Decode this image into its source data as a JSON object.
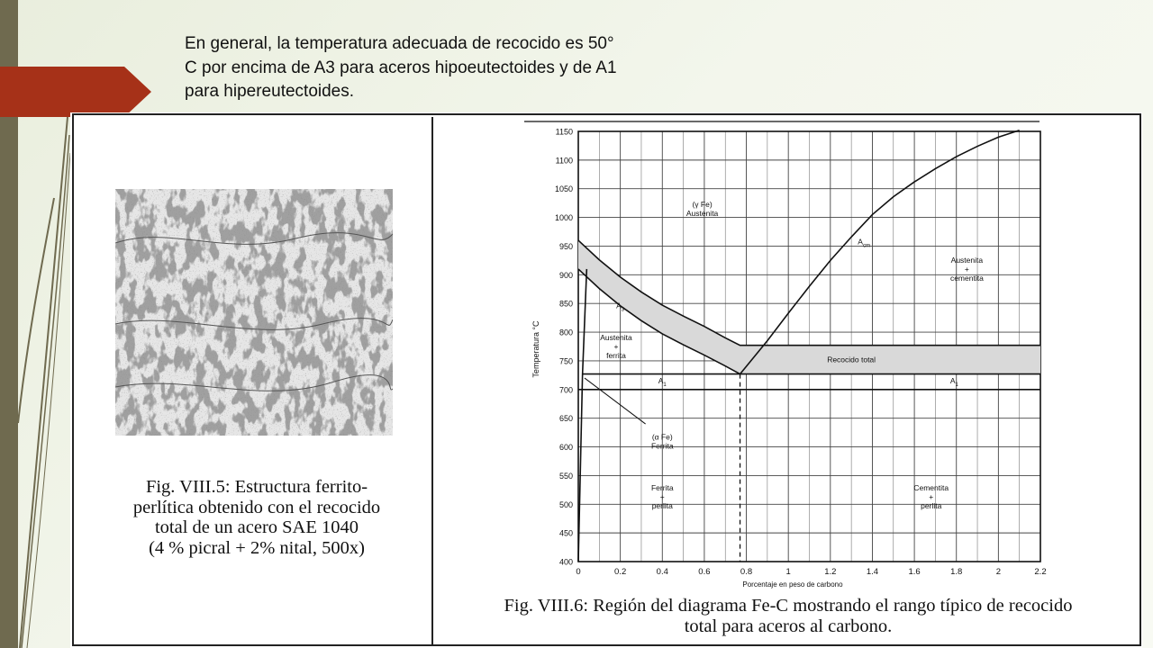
{
  "slide": {
    "text_lines": [
      "En general, la temperatura adecuada de recocido es 50°",
      "C por encima de A3 para aceros hipoeutectoides y de A1",
      "para hipereutectoides."
    ]
  },
  "figure_left": {
    "caption_lines": [
      "Fig. VIII.5: Estructura ferrito-",
      "perlítica obtenido con el recocido",
      "total de un acero SAE 1040",
      "(4 % picral + 2% nital, 500x)"
    ]
  },
  "figure_right": {
    "caption_lines": [
      "Fig. VIII.6: Región del diagrama Fe-C mostrando el rango típico de recocido",
      "total para aceros al carbono."
    ]
  },
  "chart_data": {
    "type": "line",
    "xlabel": "Porcentaje en peso de carbono",
    "ylabel": "Temperatura °C",
    "xlim": [
      0,
      2.2
    ],
    "ylim": [
      400,
      1150
    ],
    "x_ticks": [
      "0",
      "0.2",
      "0.4",
      "0.6",
      "0.8",
      "1",
      "1.2",
      "1.4",
      "1.6",
      "1.8",
      "2",
      "2.2"
    ],
    "y_ticks": [
      "400",
      "450",
      "500",
      "550",
      "600",
      "650",
      "700",
      "750",
      "800",
      "850",
      "900",
      "950",
      "1000",
      "1050",
      "1100",
      "1150"
    ],
    "grid": true,
    "series": [
      {
        "name": "A3",
        "x": [
          0,
          0.1,
          0.2,
          0.3,
          0.4,
          0.5,
          0.6,
          0.7,
          0.77
        ],
        "y": [
          910,
          876,
          846,
          820,
          797,
          778,
          760,
          741,
          727
        ]
      },
      {
        "name": "Acm",
        "x": [
          0.77,
          0.9,
          1.0,
          1.1,
          1.2,
          1.3,
          1.4,
          1.5,
          1.6,
          1.7,
          1.8,
          1.9,
          2.0,
          2.1
        ],
        "y": [
          727,
          785,
          833,
          880,
          925,
          966,
          1005,
          1036,
          1062,
          1085,
          1106,
          1124,
          1140,
          1152
        ]
      },
      {
        "name": "A1",
        "x": [
          0.02,
          2.2
        ],
        "y": [
          727,
          727
        ]
      },
      {
        "name": "",
        "x": [
          0,
          0.1,
          0.2,
          0.3,
          0.4,
          0.5,
          0.6,
          0.7,
          0.77,
          2.2
        ],
        "y": [
          960,
          926,
          896,
          870,
          847,
          828,
          810,
          790,
          777,
          777
        ]
      },
      {
        "name": "",
        "x": [
          0,
          2.2
        ],
        "y": [
          700,
          700
        ]
      },
      {
        "name": "",
        "x": [
          0,
          0.02,
          0.04
        ],
        "y": [
          400,
          727,
          910
        ]
      }
    ],
    "annotations": [
      {
        "label": "Recocido total",
        "x": 1.3,
        "y": 752
      },
      {
        "label_lines": [
          "(γ Fe)",
          "Austenita"
        ],
        "x": 0.59,
        "y": 1010
      },
      {
        "label_lines": [
          "Austenita",
          "+",
          "cementita"
        ],
        "x": 1.85,
        "y": 905
      },
      {
        "label_lines": [
          "Austenita",
          "+",
          "ferrita"
        ],
        "x": 0.18,
        "y": 770
      },
      {
        "label_lines": [
          "(α Fe)",
          "Ferrita"
        ],
        "x": 0.4,
        "y": 605
      },
      {
        "label_lines": [
          "Ferrita",
          "+",
          "perlita"
        ],
        "x": 0.4,
        "y": 508
      },
      {
        "label_lines": [
          "Cementita",
          "+",
          "perlita"
        ],
        "x": 1.68,
        "y": 508
      },
      {
        "label": "A3",
        "x": 0.2,
        "y": 846
      },
      {
        "label": "A1",
        "x": 0.4,
        "y": 715
      },
      {
        "label": "A1",
        "x": 1.79,
        "y": 715
      },
      {
        "label": "Acm",
        "x": 1.36,
        "y": 958
      }
    ],
    "colors": {
      "annealing_band": "#d9d9d9",
      "line": "#111111"
    }
  }
}
